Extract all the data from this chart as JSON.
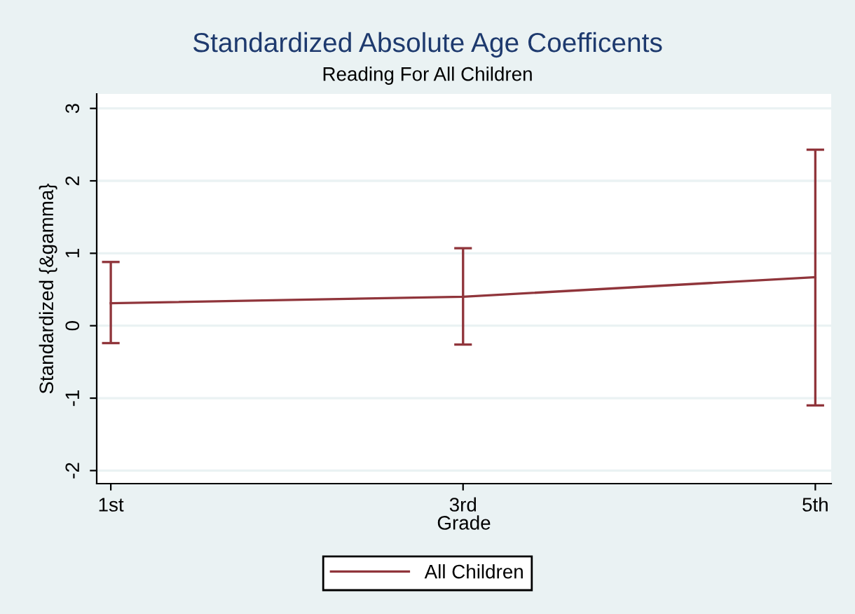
{
  "chart_data": {
    "type": "line",
    "title": "Standardized Absolute Age Coefficents",
    "subtitle": "Reading For All Children",
    "xlabel": "Grade",
    "ylabel": "Standardized {&gamma}",
    "categories": [
      "1st",
      "3rd",
      "5th"
    ],
    "series": [
      {
        "name": "All Children",
        "color": "#90353b",
        "values": [
          0.31,
          0.4,
          0.67
        ],
        "errors": [
          [
            -0.24,
            0.88
          ],
          [
            -0.26,
            1.07
          ],
          [
            -1.1,
            2.43
          ]
        ]
      }
    ],
    "ylim": [
      -2.18,
      3.2
    ],
    "yticks": [
      -2,
      -1,
      0,
      1,
      2,
      3
    ],
    "grid": "y",
    "legend": "bottom",
    "marker": "none",
    "line_style": "solid"
  }
}
